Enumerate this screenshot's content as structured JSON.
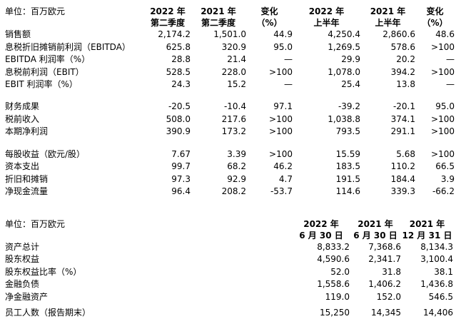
{
  "table1": {
    "unit_label": "单位：百万欧元",
    "columns": [
      [
        "2022 年",
        "第二季度"
      ],
      [
        "2021 年",
        "第二季度"
      ],
      [
        "变化",
        "（%）"
      ],
      [
        "2022 年",
        "上半年"
      ],
      [
        "2021 年",
        "上半年"
      ],
      [
        "变化",
        "（%）"
      ]
    ],
    "sections": [
      [
        {
          "label": "销售额",
          "values": [
            "2,174.2",
            "1,501.0",
            "44.9",
            "4,250.4",
            "2,860.6",
            "48.6"
          ]
        },
        {
          "label": "息税折旧摊销前利润（EBITDA）",
          "values": [
            "625.8",
            "320.9",
            "95.0",
            "1,269.5",
            "578.6",
            ">100"
          ]
        },
        {
          "label": "EBITDA 利润率（%）",
          "values": [
            "28.8",
            "21.4",
            "—",
            "29.9",
            "20.2",
            "—"
          ]
        },
        {
          "label": "息税前利润（EBIT）",
          "values": [
            "528.5",
            "228.0",
            ">100",
            "1,078.0",
            "394.2",
            ">100"
          ]
        },
        {
          "label": "EBIT 利润率（%）",
          "values": [
            "24.3",
            "15.2",
            "—",
            "25.4",
            "13.8",
            "—"
          ]
        }
      ],
      [
        {
          "label": "财务成果",
          "values": [
            "-20.5",
            "-10.4",
            "97.1",
            "-39.2",
            "-20.1",
            "95.0"
          ]
        },
        {
          "label": "税前收入",
          "values": [
            "508.0",
            "217.6",
            ">100",
            "1,038.8",
            "374.1",
            ">100"
          ]
        },
        {
          "label": "本期净利润",
          "values": [
            "390.9",
            "173.2",
            ">100",
            "793.5",
            "291.1",
            ">100"
          ]
        }
      ],
      [
        {
          "label": "每股收益（欧元/股）",
          "values": [
            "7.67",
            "3.39",
            ">100",
            "15.59",
            "5.68",
            ">100"
          ]
        },
        {
          "label": "资本支出",
          "values": [
            "99.7",
            "68.2",
            "46.2",
            "183.5",
            "110.2",
            "66.5"
          ]
        },
        {
          "label": "折旧和摊销",
          "values": [
            "97.3",
            "92.9",
            "4.7",
            "191.5",
            "184.4",
            "3.9"
          ]
        },
        {
          "label": "净现金流量",
          "values": [
            "96.4",
            "208.2",
            "-53.7",
            "114.6",
            "339.3",
            "-66.2"
          ]
        }
      ]
    ]
  },
  "table2": {
    "unit_label": "单位：百万欧元",
    "columns": [
      [
        "2022 年",
        "6 月 30 日"
      ],
      [
        "2021 年",
        "6 月 30 日"
      ],
      [
        "2021 年",
        "12 月 31 日"
      ]
    ],
    "sections": [
      [
        {
          "label": "资产总计",
          "values": [
            "8,833.2",
            "7,368.6",
            "8,134.3"
          ]
        },
        {
          "label": "股东权益",
          "values": [
            "4,590.6",
            "2,341.7",
            "3,100.4"
          ]
        },
        {
          "label": "股东权益比率（%）",
          "values": [
            "52.0",
            "31.8",
            "38.1"
          ]
        },
        {
          "label": "金融负债",
          "values": [
            "1,558.6",
            "1,406.2",
            "1,436.8"
          ]
        },
        {
          "label": "净金融资产",
          "values": [
            "119.0",
            "152.0",
            "546.5"
          ]
        }
      ],
      [
        {
          "label": "员工人数（报告期末）",
          "values": [
            "15,250",
            "14,345",
            "14,406"
          ]
        }
      ]
    ]
  }
}
